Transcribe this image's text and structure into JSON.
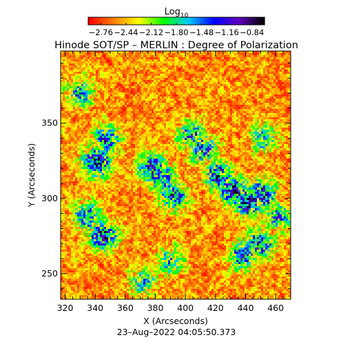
{
  "chart_data": {
    "type": "heatmap",
    "title": "Hinode SOT/SP – MERLIN : Degree of Polarization",
    "xlabel": "X (Arcseconds)",
    "ylabel": "Y (Arcseconds)",
    "xlim": [
      317,
      470
    ],
    "ylim": [
      233,
      398
    ],
    "x_ticks": [
      320,
      340,
      360,
      380,
      400,
      420,
      440,
      460
    ],
    "y_ticks": [
      250,
      300,
      350
    ],
    "colorbar": {
      "label_main": "Log",
      "label_sub": "10",
      "range": [
        -2.92,
        -0.68
      ],
      "ticks": [
        "−2.76",
        "−2.44",
        "−2.12",
        "−1.80",
        "−1.48",
        "−1.16",
        "−0.84"
      ],
      "colormap": [
        "#ff0000",
        "#ff8000",
        "#ffff00",
        "#00ff00",
        "#00c8ff",
        "#0000ff",
        "#6000c0",
        "#000000"
      ]
    },
    "background_level": -2.55,
    "strong_polarization_regions": [
      {
        "x": 341,
        "y": 324,
        "level": -1.1
      },
      {
        "x": 348,
        "y": 339,
        "level": -1.5
      },
      {
        "x": 334,
        "y": 288,
        "level": -1.5
      },
      {
        "x": 346,
        "y": 275,
        "level": -1.2
      },
      {
        "x": 330,
        "y": 370,
        "level": -1.7
      },
      {
        "x": 378,
        "y": 320,
        "level": -1.3
      },
      {
        "x": 384,
        "y": 314,
        "level": -1.5
      },
      {
        "x": 392,
        "y": 302,
        "level": -1.4
      },
      {
        "x": 404,
        "y": 342,
        "level": -1.6
      },
      {
        "x": 412,
        "y": 333,
        "level": -1.5
      },
      {
        "x": 422,
        "y": 315,
        "level": -1.4
      },
      {
        "x": 432,
        "y": 305,
        "level": -1.2
      },
      {
        "x": 442,
        "y": 298,
        "level": -1.2
      },
      {
        "x": 452,
        "y": 303,
        "level": -1.3
      },
      {
        "x": 438,
        "y": 262,
        "level": -1.5
      },
      {
        "x": 450,
        "y": 270,
        "level": -1.4
      },
      {
        "x": 462,
        "y": 288,
        "level": -1.6
      },
      {
        "x": 452,
        "y": 340,
        "level": -1.7
      },
      {
        "x": 390,
        "y": 258,
        "level": -1.7
      },
      {
        "x": 372,
        "y": 244,
        "level": -1.8
      }
    ]
  },
  "timestamp": "23–Aug–2022 04:05:50.373"
}
